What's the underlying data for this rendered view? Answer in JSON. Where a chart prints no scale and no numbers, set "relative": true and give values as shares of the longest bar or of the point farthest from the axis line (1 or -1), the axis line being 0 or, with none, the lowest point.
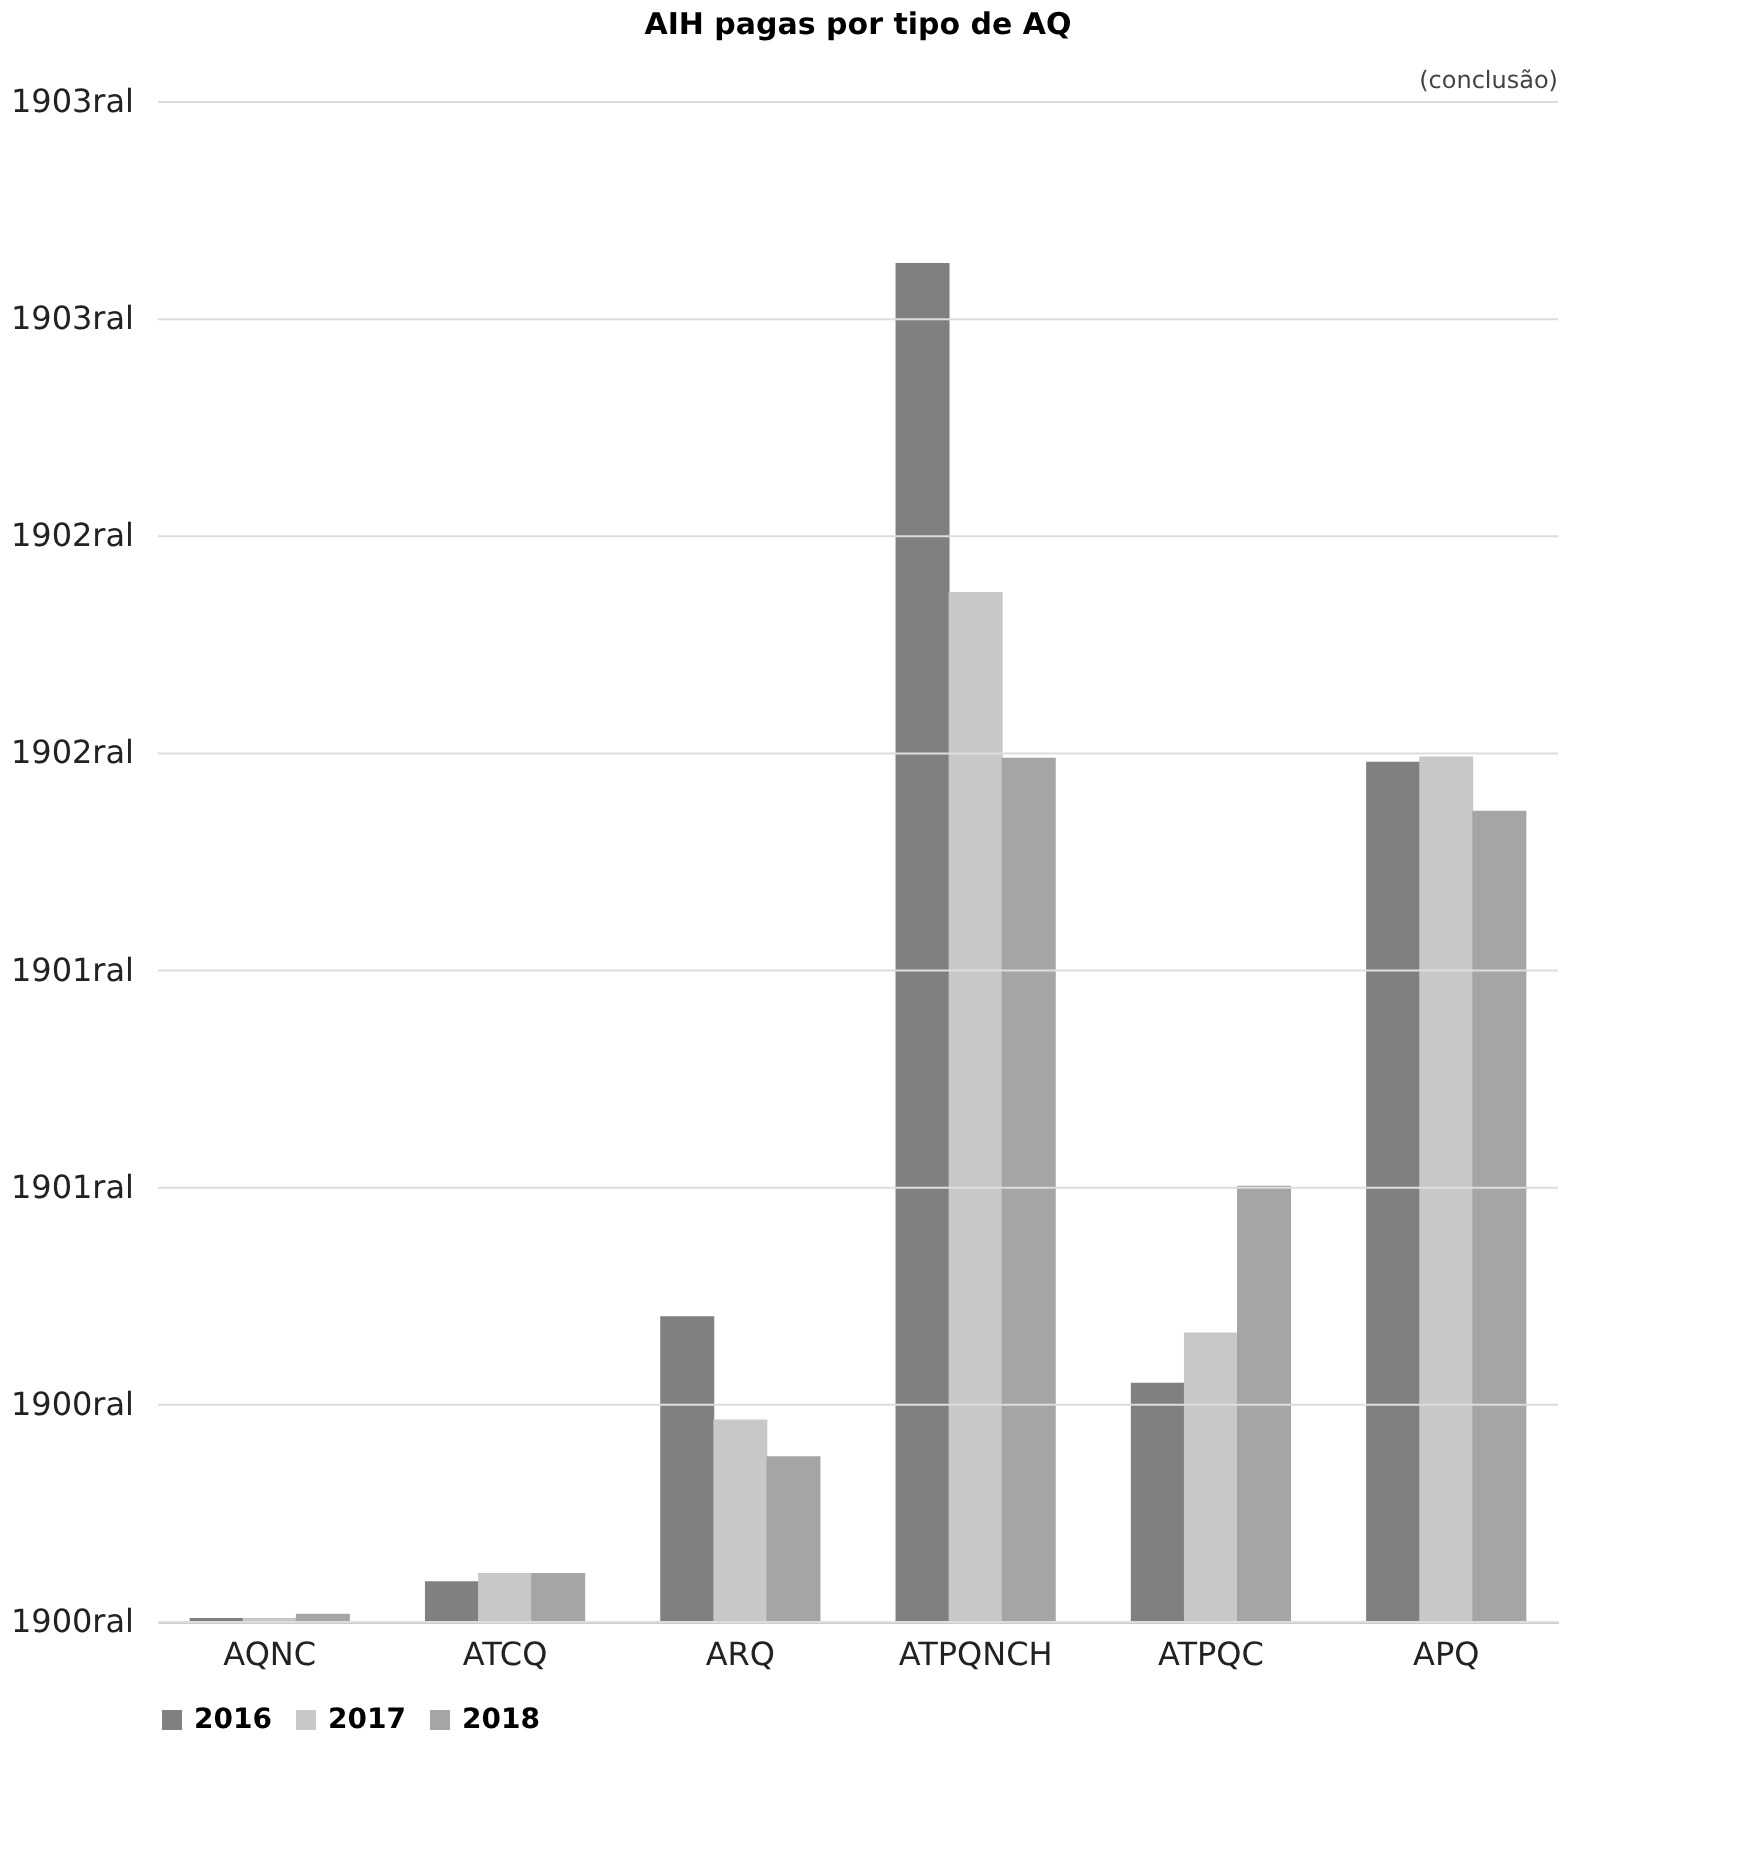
{
  "chart_data": {
    "type": "bar",
    "title": "AIH pagas por tipo de AQ",
    "relative": true,
    "annotations": [
      "1900ral",
      "1900ral",
      "1901ral",
      "1901ral",
      "1902ral",
      "1902ral",
      "1903ral",
      "1903ral",
      "(conclusão)"
    ],
    "categories": [
      "AQNC",
      "ATCQ",
      "ARQ",
      "ATPQNCH",
      "ATPQC",
      "APQ"
    ],
    "series": [
      {
        "name": "2016",
        "color": "#808080",
        "values": [
          0.003,
          0.03,
          0.225,
          1,
          0.176,
          0.633
        ]
      },
      {
        "name": "2017",
        "color": "#c8c8c8",
        "values": [
          0.003,
          0.036,
          0.149,
          0.758,
          0.213,
          0.637
        ]
      },
      {
        "name": "2018",
        "color": "#a5a5a5",
        "values": [
          0.006,
          0.036,
          0.122,
          0.636,
          0.321,
          0.597
        ]
      }
    ],
    "grid": "y",
    "legend": "bottom"
  }
}
